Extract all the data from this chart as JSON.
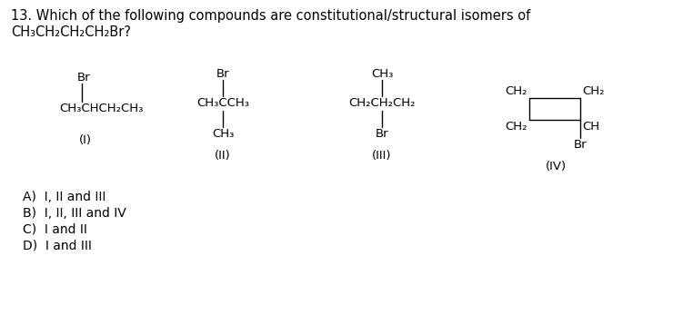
{
  "background_color": "#ffffff",
  "title_line1": "13. Which of the following compounds are constitutional/structural isomers of",
  "title_line2": "CH₃CH₂CH₂CH₂Br?",
  "title_fontsize": 10.5,
  "cfs": 9.5,
  "afs": 10,
  "text_color": "#000000",
  "answers": [
    "A)  I, II and III",
    "B)  I, II, III and IV",
    "C)  I and II",
    "D)  I and III"
  ]
}
